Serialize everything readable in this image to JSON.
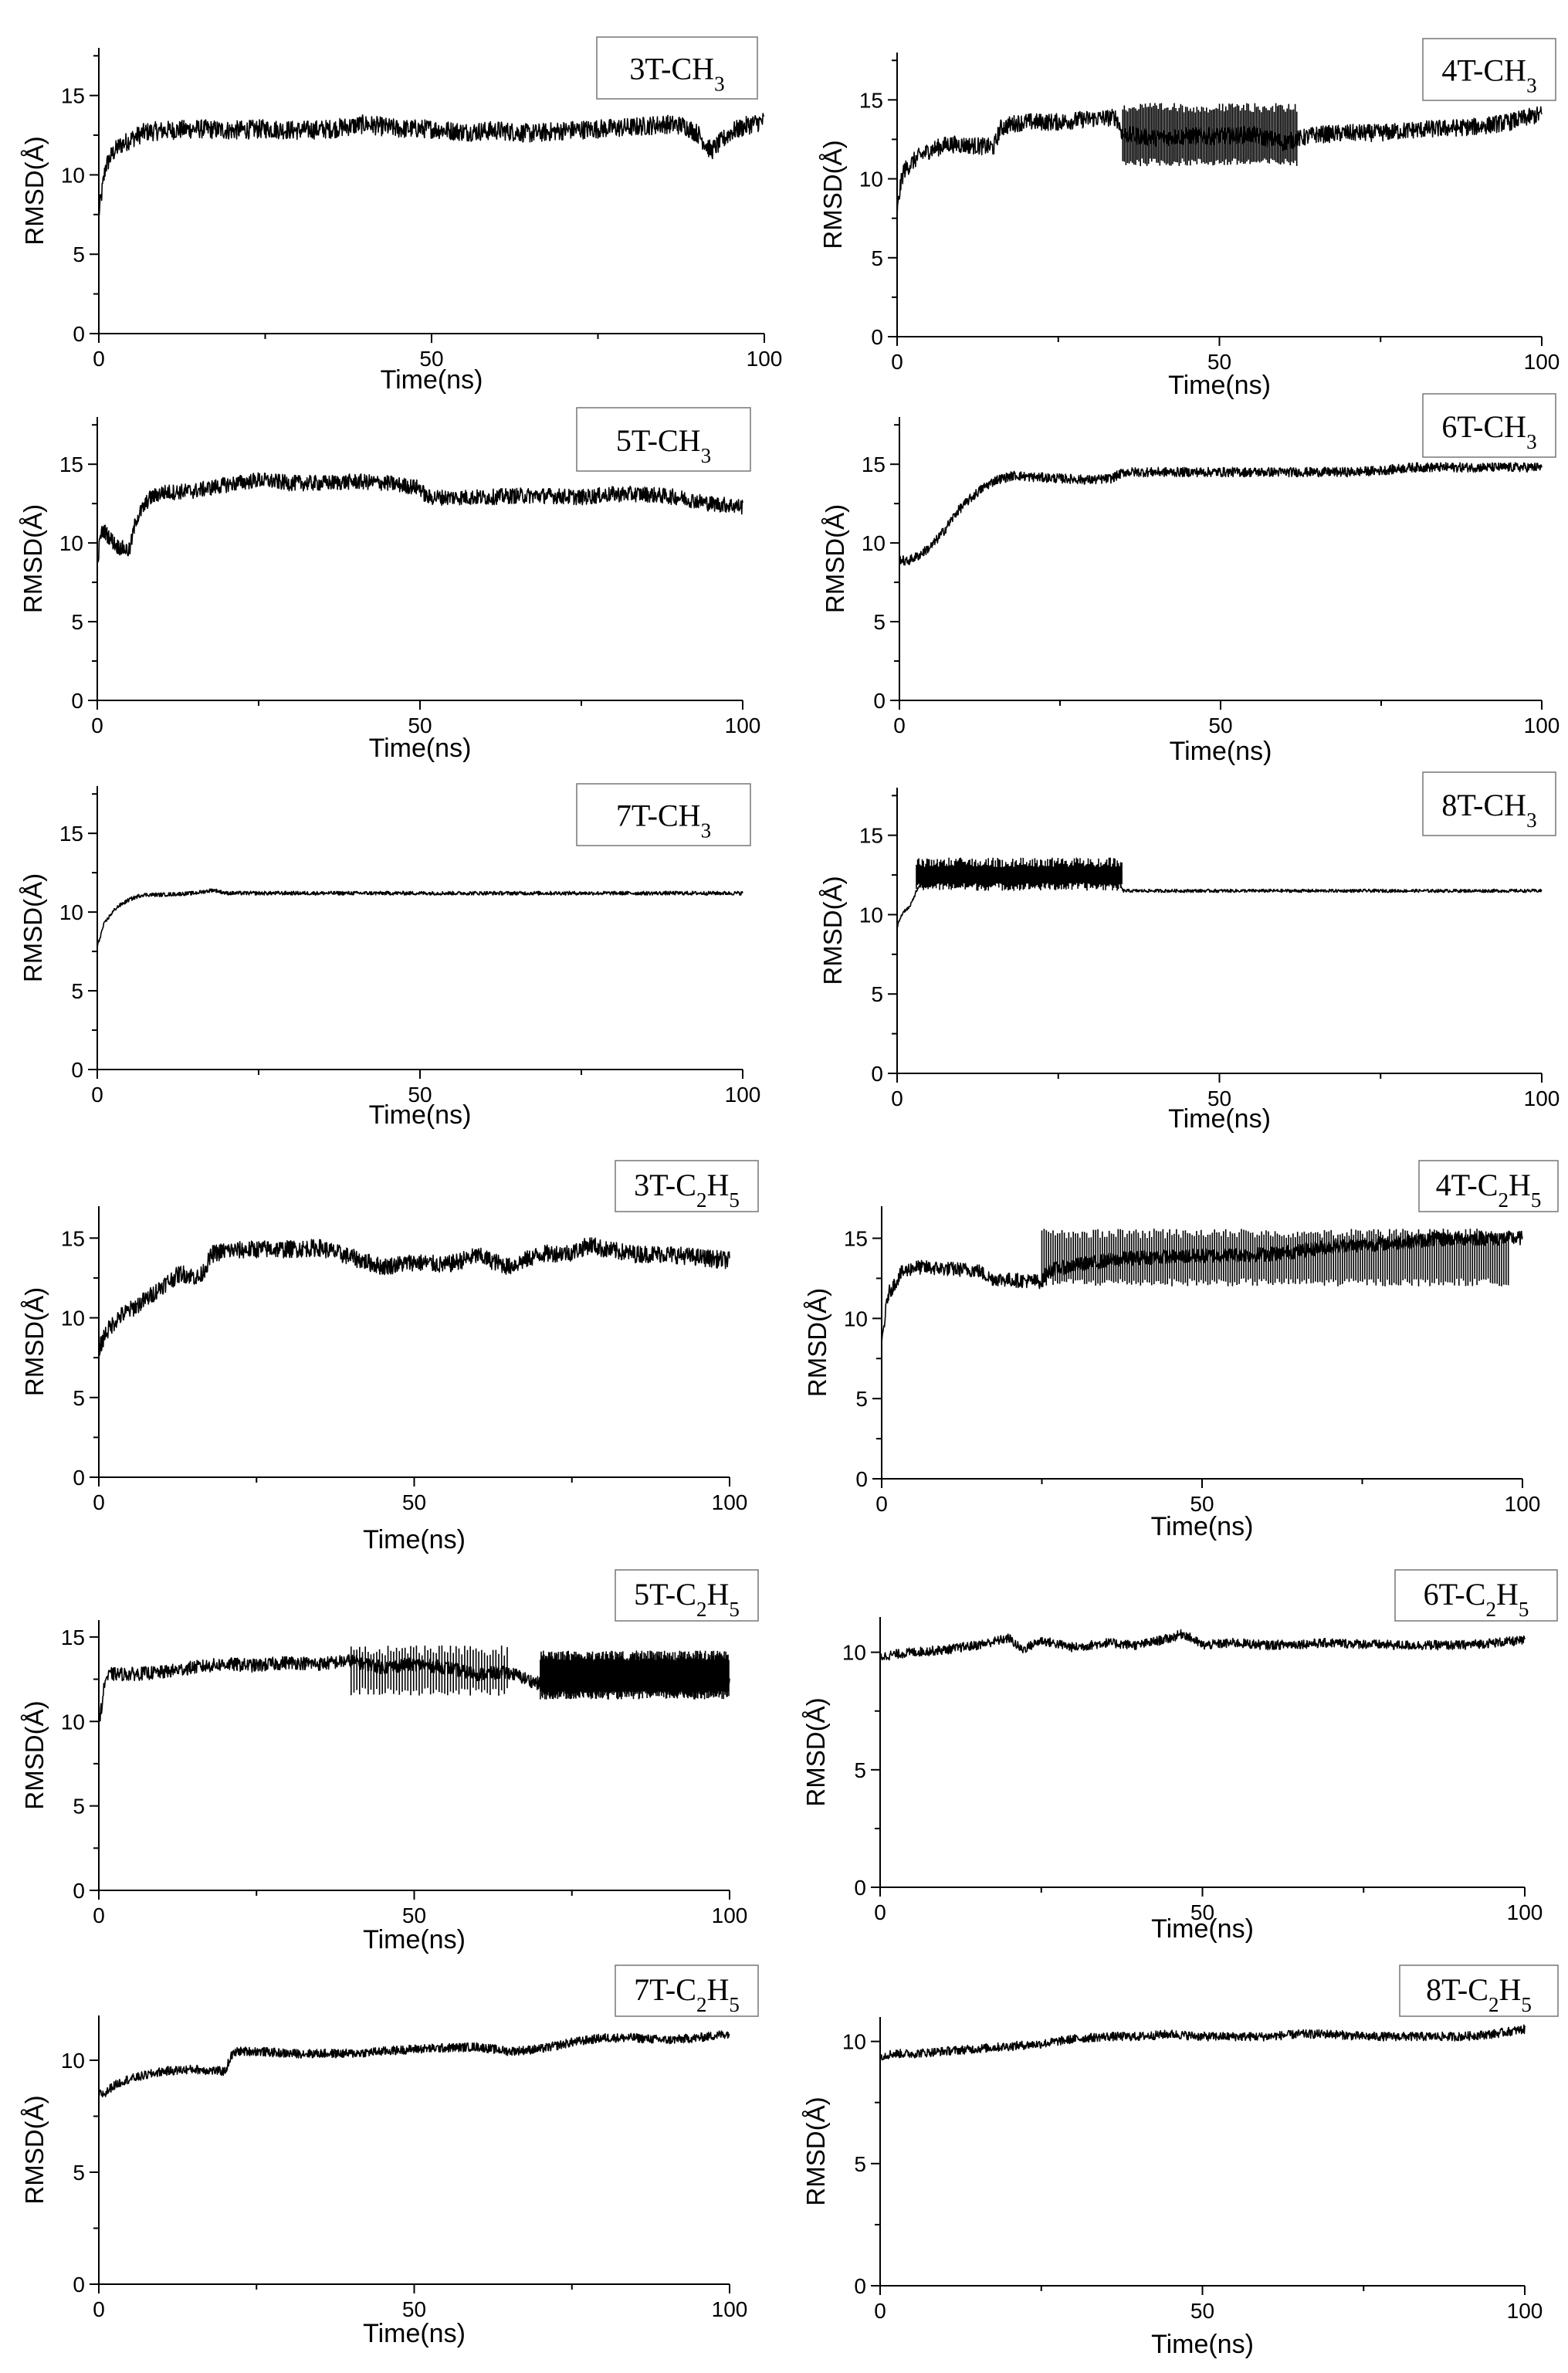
{
  "chart_data": [
    {
      "type": "line",
      "label_main": "3T-CH",
      "label_sub": "3",
      "xlabel": "Time(ns)",
      "ylabel": "RMSD(Å)",
      "xlim": [
        0,
        100
      ],
      "ylim": [
        0,
        18
      ],
      "xticks": [
        0,
        50,
        100
      ],
      "yticks": [
        0,
        5,
        10,
        15
      ],
      "series": [
        {
          "x": [
            0,
            0.5,
            1,
            2,
            3,
            5,
            7,
            10,
            15,
            20,
            25,
            30,
            35,
            40,
            45,
            50,
            55,
            60,
            65,
            70,
            75,
            80,
            85,
            88,
            90,
            92,
            95,
            98,
            100
          ],
          "y": [
            7.5,
            9,
            10.5,
            11.3,
            11.8,
            12.3,
            12.7,
            12.8,
            12.9,
            12.8,
            12.9,
            12.8,
            12.9,
            13.2,
            12.9,
            12.9,
            12.7,
            12.8,
            12.6,
            12.8,
            12.9,
            13.0,
            13.2,
            13.1,
            12.6,
            11.5,
            12.7,
            13.2,
            13.4
          ],
          "noise": 0.6
        }
      ],
      "spikes": []
    },
    {
      "type": "line",
      "label_main": "4T-CH",
      "label_sub": "3",
      "xlabel": "Time(ns)",
      "ylabel": "RMSD(Å)",
      "xlim": [
        0,
        100
      ],
      "ylim": [
        0,
        18
      ],
      "xticks": [
        0,
        50,
        100
      ],
      "yticks": [
        0,
        5,
        10,
        15
      ],
      "series": [
        {
          "x": [
            0,
            0.5,
            1,
            3,
            5,
            8,
            12,
            15,
            16,
            18,
            20,
            25,
            30,
            34,
            35,
            40,
            45,
            50,
            55,
            60,
            65,
            70,
            75,
            80,
            85,
            90,
            95,
            100
          ],
          "y": [
            7.8,
            9.5,
            10.5,
            11.3,
            11.8,
            12.2,
            12.1,
            12.0,
            13.2,
            13.5,
            13.6,
            13.6,
            13.8,
            13.9,
            12.8,
            12.6,
            12.7,
            12.7,
            12.8,
            12.3,
            12.8,
            12.9,
            12.9,
            13.1,
            13.2,
            13.3,
            13.6,
            14.1
          ],
          "noise": 0.55
        }
      ],
      "spikes": [
        {
          "range": [
            35,
            62
          ],
          "lo": 10.8,
          "hi": 14.8,
          "step": 0.25
        }
      ]
    },
    {
      "type": "line",
      "label_main": "5T-CH",
      "label_sub": "3",
      "xlabel": "Time(ns)",
      "ylabel": "RMSD(Å)",
      "xlim": [
        0,
        100
      ],
      "ylim": [
        0,
        18
      ],
      "xticks": [
        0,
        50,
        100
      ],
      "yticks": [
        0,
        5,
        10,
        15
      ],
      "series": [
        {
          "x": [
            0,
            0.5,
            1,
            3,
            5,
            6,
            8,
            10,
            15,
            20,
            25,
            30,
            35,
            40,
            45,
            50,
            51,
            55,
            60,
            65,
            70,
            75,
            80,
            85,
            90,
            95,
            98,
            100
          ],
          "y": [
            8.5,
            10.5,
            10.8,
            9.8,
            9.5,
            11.5,
            12.8,
            13.2,
            13.3,
            13.7,
            14.0,
            13.8,
            13.8,
            13.9,
            13.8,
            13.5,
            12.9,
            12.9,
            12.9,
            13.0,
            13.0,
            12.9,
            13.1,
            13.1,
            12.9,
            12.5,
            12.4,
            12.3
          ],
          "noise": 0.5
        }
      ],
      "spikes": []
    },
    {
      "type": "line",
      "label_main": "6T-CH",
      "label_sub": "3",
      "xlabel": "Time(ns)",
      "ylabel": "RMSD(Å)",
      "xlim": [
        0,
        100
      ],
      "ylim": [
        0,
        18
      ],
      "xticks": [
        0,
        50,
        100
      ],
      "yticks": [
        0,
        5,
        10,
        15
      ],
      "series": [
        {
          "x": [
            0,
            1,
            3,
            5,
            7,
            9,
            11,
            13,
            15,
            18,
            20,
            25,
            30,
            33,
            35,
            40,
            50,
            60,
            70,
            75,
            80,
            90,
            100
          ],
          "y": [
            9.0,
            8.8,
            9.2,
            9.8,
            10.8,
            12.0,
            12.8,
            13.5,
            14.0,
            14.3,
            14.2,
            14.1,
            14.0,
            14.1,
            14.5,
            14.5,
            14.5,
            14.5,
            14.5,
            14.6,
            14.8,
            14.8,
            14.8
          ],
          "noise": 0.3
        }
      ],
      "spikes": []
    },
    {
      "type": "line",
      "label_main": "7T-CH",
      "label_sub": "3",
      "xlabel": "Time(ns)",
      "ylabel": "RMSD(Å)",
      "xlim": [
        0,
        100
      ],
      "ylim": [
        0,
        18
      ],
      "xticks": [
        0,
        50,
        100
      ],
      "yticks": [
        0,
        5,
        10,
        15
      ],
      "series": [
        {
          "x": [
            0,
            0.5,
            1,
            2,
            3,
            5,
            7,
            10,
            15,
            18,
            20,
            30,
            40,
            50,
            60,
            70,
            80,
            90,
            100
          ],
          "y": [
            7.8,
            8.5,
            9.2,
            9.8,
            10.3,
            10.8,
            11.1,
            11.1,
            11.2,
            11.4,
            11.2,
            11.2,
            11.2,
            11.2,
            11.2,
            11.2,
            11.2,
            11.2,
            11.2
          ],
          "noise": 0.12
        }
      ],
      "spikes": []
    },
    {
      "type": "line",
      "label_main": "8T-CH",
      "label_sub": "3",
      "xlabel": "Time(ns)",
      "ylabel": "RMSD(Å)",
      "xlim": [
        0,
        100
      ],
      "ylim": [
        0,
        18
      ],
      "xticks": [
        0,
        50,
        100
      ],
      "yticks": [
        0,
        5,
        10,
        15
      ],
      "series": [
        {
          "x": [
            0,
            0.5,
            1,
            2,
            3,
            5,
            10,
            20,
            30,
            34,
            35,
            36,
            40,
            50,
            60,
            70,
            80,
            90,
            100
          ],
          "y": [
            9.2,
            9.8,
            10.2,
            10.5,
            11.5,
            12.5,
            12.5,
            12.5,
            12.6,
            12.6,
            11.5,
            11.5,
            11.5,
            11.5,
            11.5,
            11.5,
            11.5,
            11.5,
            11.5
          ],
          "noise": 0.1
        }
      ],
      "spikes": [
        {
          "range": [
            3,
            35
          ],
          "lo": 11.5,
          "hi": 13.6,
          "step": 0.18
        }
      ]
    },
    {
      "type": "line",
      "label_main": "3T-C",
      "label_sub": "2",
      "label_main2": "H",
      "label_sub2": "5",
      "xlabel": "Time(ns)",
      "ylabel": "RMSD(Å)",
      "xlim": [
        0,
        100
      ],
      "ylim": [
        0,
        17
      ],
      "xticks": [
        0,
        50,
        100
      ],
      "yticks": [
        0,
        5,
        10,
        15
      ],
      "series": [
        {
          "x": [
            0,
            1,
            3,
            5,
            8,
            10,
            13,
            16,
            18,
            20,
            25,
            30,
            35,
            40,
            45,
            50,
            55,
            60,
            65,
            70,
            75,
            78,
            80,
            85,
            90,
            95,
            100
          ],
          "y": [
            8.0,
            9.0,
            10.0,
            10.5,
            11.3,
            12.0,
            12.8,
            12.5,
            14.0,
            14.2,
            14.3,
            14.3,
            14.4,
            13.8,
            13.2,
            13.5,
            13.3,
            13.9,
            13.2,
            14.0,
            14.1,
            14.6,
            14.3,
            14.0,
            14.0,
            13.8,
            13.6
          ],
          "noise": 0.55
        }
      ],
      "spikes": []
    },
    {
      "type": "line",
      "label_main": "4T-C",
      "label_sub": "2",
      "label_main2": "H",
      "label_sub2": "5",
      "xlabel": "Time(ns)",
      "ylabel": "RMSD(Å)",
      "xlim": [
        0,
        100
      ],
      "ylim": [
        0,
        17
      ],
      "xticks": [
        0,
        50,
        100
      ],
      "yticks": [
        0,
        5,
        10,
        15
      ],
      "series": [
        {
          "x": [
            0,
            0.5,
            1,
            3,
            5,
            10,
            15,
            17,
            20,
            25,
            26,
            30,
            35,
            40,
            50,
            60,
            65,
            70,
            75,
            80,
            85,
            90,
            95,
            100
          ],
          "y": [
            8.5,
            10.0,
            11.5,
            12.8,
            13.2,
            13.1,
            13.0,
            12.5,
            12.4,
            12.3,
            13.0,
            13.3,
            13.6,
            13.8,
            13.9,
            14.0,
            14.2,
            14.5,
            14.6,
            14.7,
            14.9,
            15.0,
            15.0,
            15.0
          ],
          "noise": 0.45
        }
      ],
      "spikes": [
        {
          "range": [
            25,
            98
          ],
          "lo": 12.0,
          "hi": 15.6,
          "step": 0.35
        }
      ]
    },
    {
      "type": "line",
      "label_main": "5T-C",
      "label_sub": "2",
      "label_main2": "H",
      "label_sub2": "5",
      "xlabel": "Time(ns)",
      "ylabel": "RMSD(Å)",
      "xlim": [
        0,
        100
      ],
      "ylim": [
        0,
        16
      ],
      "xticks": [
        0,
        50,
        100
      ],
      "yticks": [
        0,
        5,
        10,
        15
      ],
      "series": [
        {
          "x": [
            0,
            0.5,
            1,
            2,
            5,
            10,
            15,
            20,
            25,
            30,
            35,
            40,
            45,
            50,
            55,
            60,
            65,
            70,
            72,
            75,
            80,
            85,
            90,
            95,
            100
          ],
          "y": [
            10.0,
            11.0,
            12.5,
            12.8,
            12.8,
            12.9,
            13.2,
            13.4,
            13.3,
            13.5,
            13.4,
            13.6,
            13.2,
            13.4,
            13.2,
            12.8,
            12.9,
            12.2,
            12.5,
            12.6,
            12.6,
            12.6,
            12.6,
            12.5,
            12.6
          ],
          "noise": 0.4
        }
      ],
      "spikes": [
        {
          "range": [
            40,
            65
          ],
          "lo": 11.5,
          "hi": 14.5,
          "step": 0.45
        },
        {
          "range": [
            70,
            100
          ],
          "lo": 11.3,
          "hi": 14.2,
          "step": 0.12
        }
      ]
    },
    {
      "type": "line",
      "label_main": "6T-C",
      "label_sub": "2",
      "label_main2": "H",
      "label_sub2": "5",
      "xlabel": "Time(ns)",
      "ylabel": "RMSD(Å)",
      "xlim": [
        0,
        100
      ],
      "ylim": [
        0,
        11.5
      ],
      "xticks": [
        0,
        50,
        100
      ],
      "yticks": [
        0,
        5,
        10
      ],
      "series": [
        {
          "x": [
            0,
            2,
            5,
            10,
            15,
            20,
            22,
            25,
            30,
            35,
            40,
            45,
            47,
            50,
            55,
            60,
            70,
            80,
            90,
            100
          ],
          "y": [
            9.8,
            9.9,
            10.0,
            10.1,
            10.3,
            10.6,
            10.1,
            10.5,
            10.2,
            10.4,
            10.3,
            10.6,
            10.8,
            10.3,
            10.4,
            10.3,
            10.4,
            10.3,
            10.3,
            10.5
          ],
          "noise": 0.2
        }
      ],
      "spikes": []
    },
    {
      "type": "line",
      "label_main": "7T-C",
      "label_sub": "2",
      "label_main2": "H",
      "label_sub2": "5",
      "xlabel": "Time(ns)",
      "ylabel": "RMSD(Å)",
      "xlim": [
        0,
        100
      ],
      "ylim": [
        0,
        12
      ],
      "xticks": [
        0,
        50,
        100
      ],
      "yticks": [
        0,
        5,
        10
      ],
      "series": [
        {
          "x": [
            0,
            1,
            2,
            4,
            7,
            10,
            15,
            20,
            21,
            22,
            25,
            30,
            40,
            50,
            60,
            65,
            70,
            75,
            80,
            85,
            90,
            95,
            100
          ],
          "y": [
            8.5,
            8.5,
            8.8,
            9.1,
            9.3,
            9.5,
            9.6,
            9.5,
            10.2,
            10.4,
            10.4,
            10.3,
            10.3,
            10.5,
            10.6,
            10.4,
            10.5,
            10.8,
            11.0,
            11.0,
            10.9,
            11.0,
            11.2
          ],
          "noise": 0.2
        }
      ],
      "spikes": []
    },
    {
      "type": "line",
      "label_main": "8T-C",
      "label_sub": "2",
      "label_main2": "H",
      "label_sub2": "5",
      "xlabel": "Time(ns)",
      "ylabel": "RMSD(Å)",
      "xlim": [
        0,
        100
      ],
      "ylim": [
        0,
        11
      ],
      "xticks": [
        0,
        50,
        100
      ],
      "yticks": [
        0,
        5,
        10
      ],
      "series": [
        {
          "x": [
            0,
            2,
            5,
            10,
            15,
            20,
            25,
            30,
            35,
            40,
            45,
            50,
            55,
            60,
            65,
            70,
            75,
            80,
            85,
            90,
            95,
            100
          ],
          "y": [
            9.4,
            9.5,
            9.5,
            9.6,
            9.7,
            9.8,
            9.9,
            10.1,
            10.2,
            10.2,
            10.3,
            10.2,
            10.2,
            10.2,
            10.3,
            10.3,
            10.2,
            10.2,
            10.2,
            10.2,
            10.3,
            10.5
          ],
          "noise": 0.18
        }
      ],
      "spikes": []
    }
  ]
}
